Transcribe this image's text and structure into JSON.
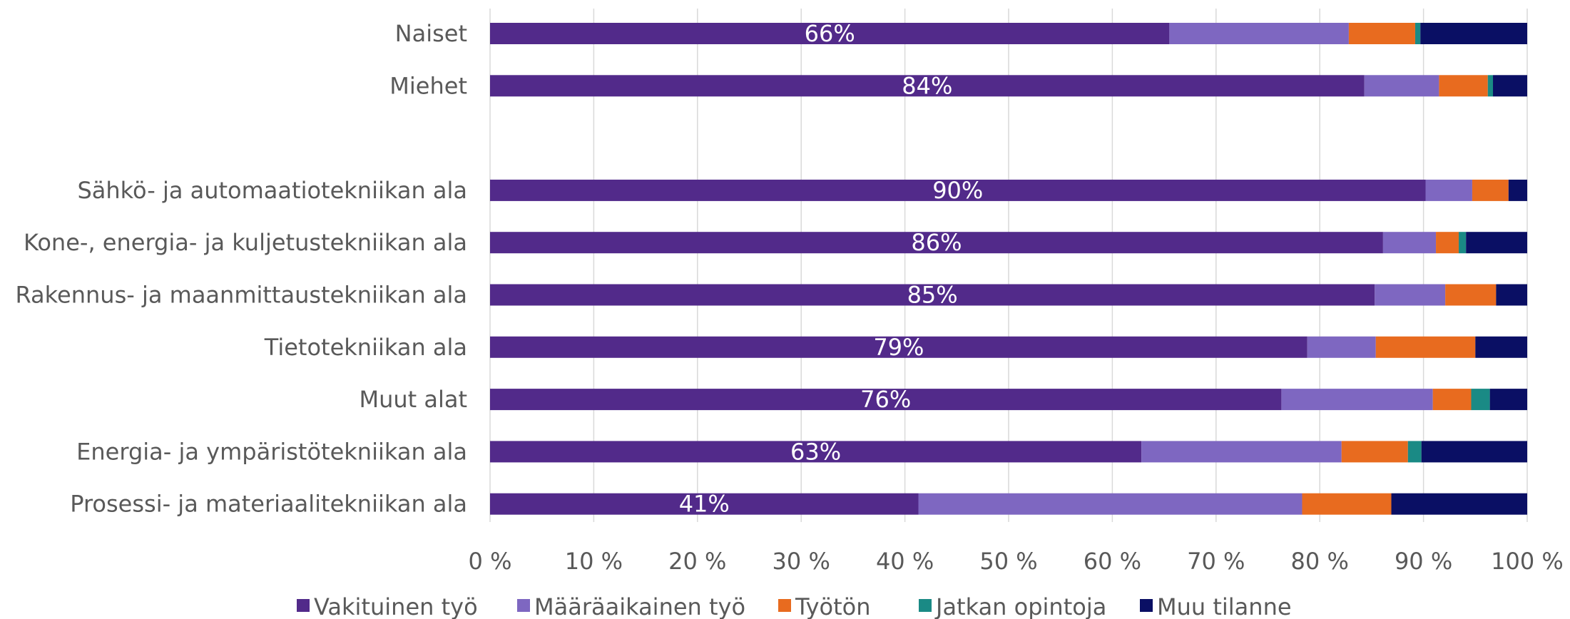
{
  "chart_data": {
    "type": "bar",
    "orientation": "horizontal",
    "stacked": "percent",
    "categories": [
      "Naiset",
      "Miehet",
      "",
      "Sähkö- ja automaatiotekniikan ala",
      "Kone-, energia- ja kuljetustekniikan ala",
      "Rakennus- ja maanmittaustekniikan ala",
      "Tietotekniikan ala",
      "Muut alat",
      "Energia- ja ympäristötekniikan ala",
      "Prosessi- ja materiaalitekniikan ala"
    ],
    "series": [
      {
        "name": "Vakituinen työ",
        "color": "#522a8a",
        "values": [
          65.5,
          84.3,
          null,
          90.2,
          86.1,
          85.3,
          78.8,
          76.3,
          62.8,
          41.3
        ]
      },
      {
        "name": "Määräaikainen työ",
        "color": "#7e67c1",
        "values": [
          17.3,
          7.2,
          null,
          4.5,
          5.1,
          6.8,
          6.6,
          14.6,
          19.3,
          37.0
        ]
      },
      {
        "name": "Työtön",
        "color": "#e86b1f",
        "values": [
          6.4,
          4.7,
          null,
          3.5,
          2.2,
          4.9,
          9.6,
          3.7,
          6.4,
          8.6
        ]
      },
      {
        "name": "Jatkan opintoja",
        "color": "#1a8a85",
        "values": [
          0.5,
          0.5,
          null,
          0.0,
          0.7,
          0.0,
          0.0,
          1.8,
          1.3,
          0.0
        ]
      },
      {
        "name": "Muu tilanne",
        "color": "#0a0f64",
        "values": [
          10.3,
          3.3,
          null,
          1.8,
          5.9,
          3.0,
          5.0,
          3.6,
          10.2,
          13.1
        ]
      }
    ],
    "data_labels": [
      "66%",
      "84%",
      "",
      "90%",
      "86%",
      "85%",
      "79%",
      "76%",
      "63%",
      "41%"
    ],
    "x_ticks": [
      "0 %",
      "10 %",
      "20 %",
      "30 %",
      "40 %",
      "50 %",
      "60 %",
      "70 %",
      "80 %",
      "90 %",
      "100 %"
    ],
    "xlim": [
      0,
      100
    ],
    "title": "",
    "xlabel": "",
    "ylabel": "",
    "grid": "vertical",
    "legend_position": "bottom"
  }
}
